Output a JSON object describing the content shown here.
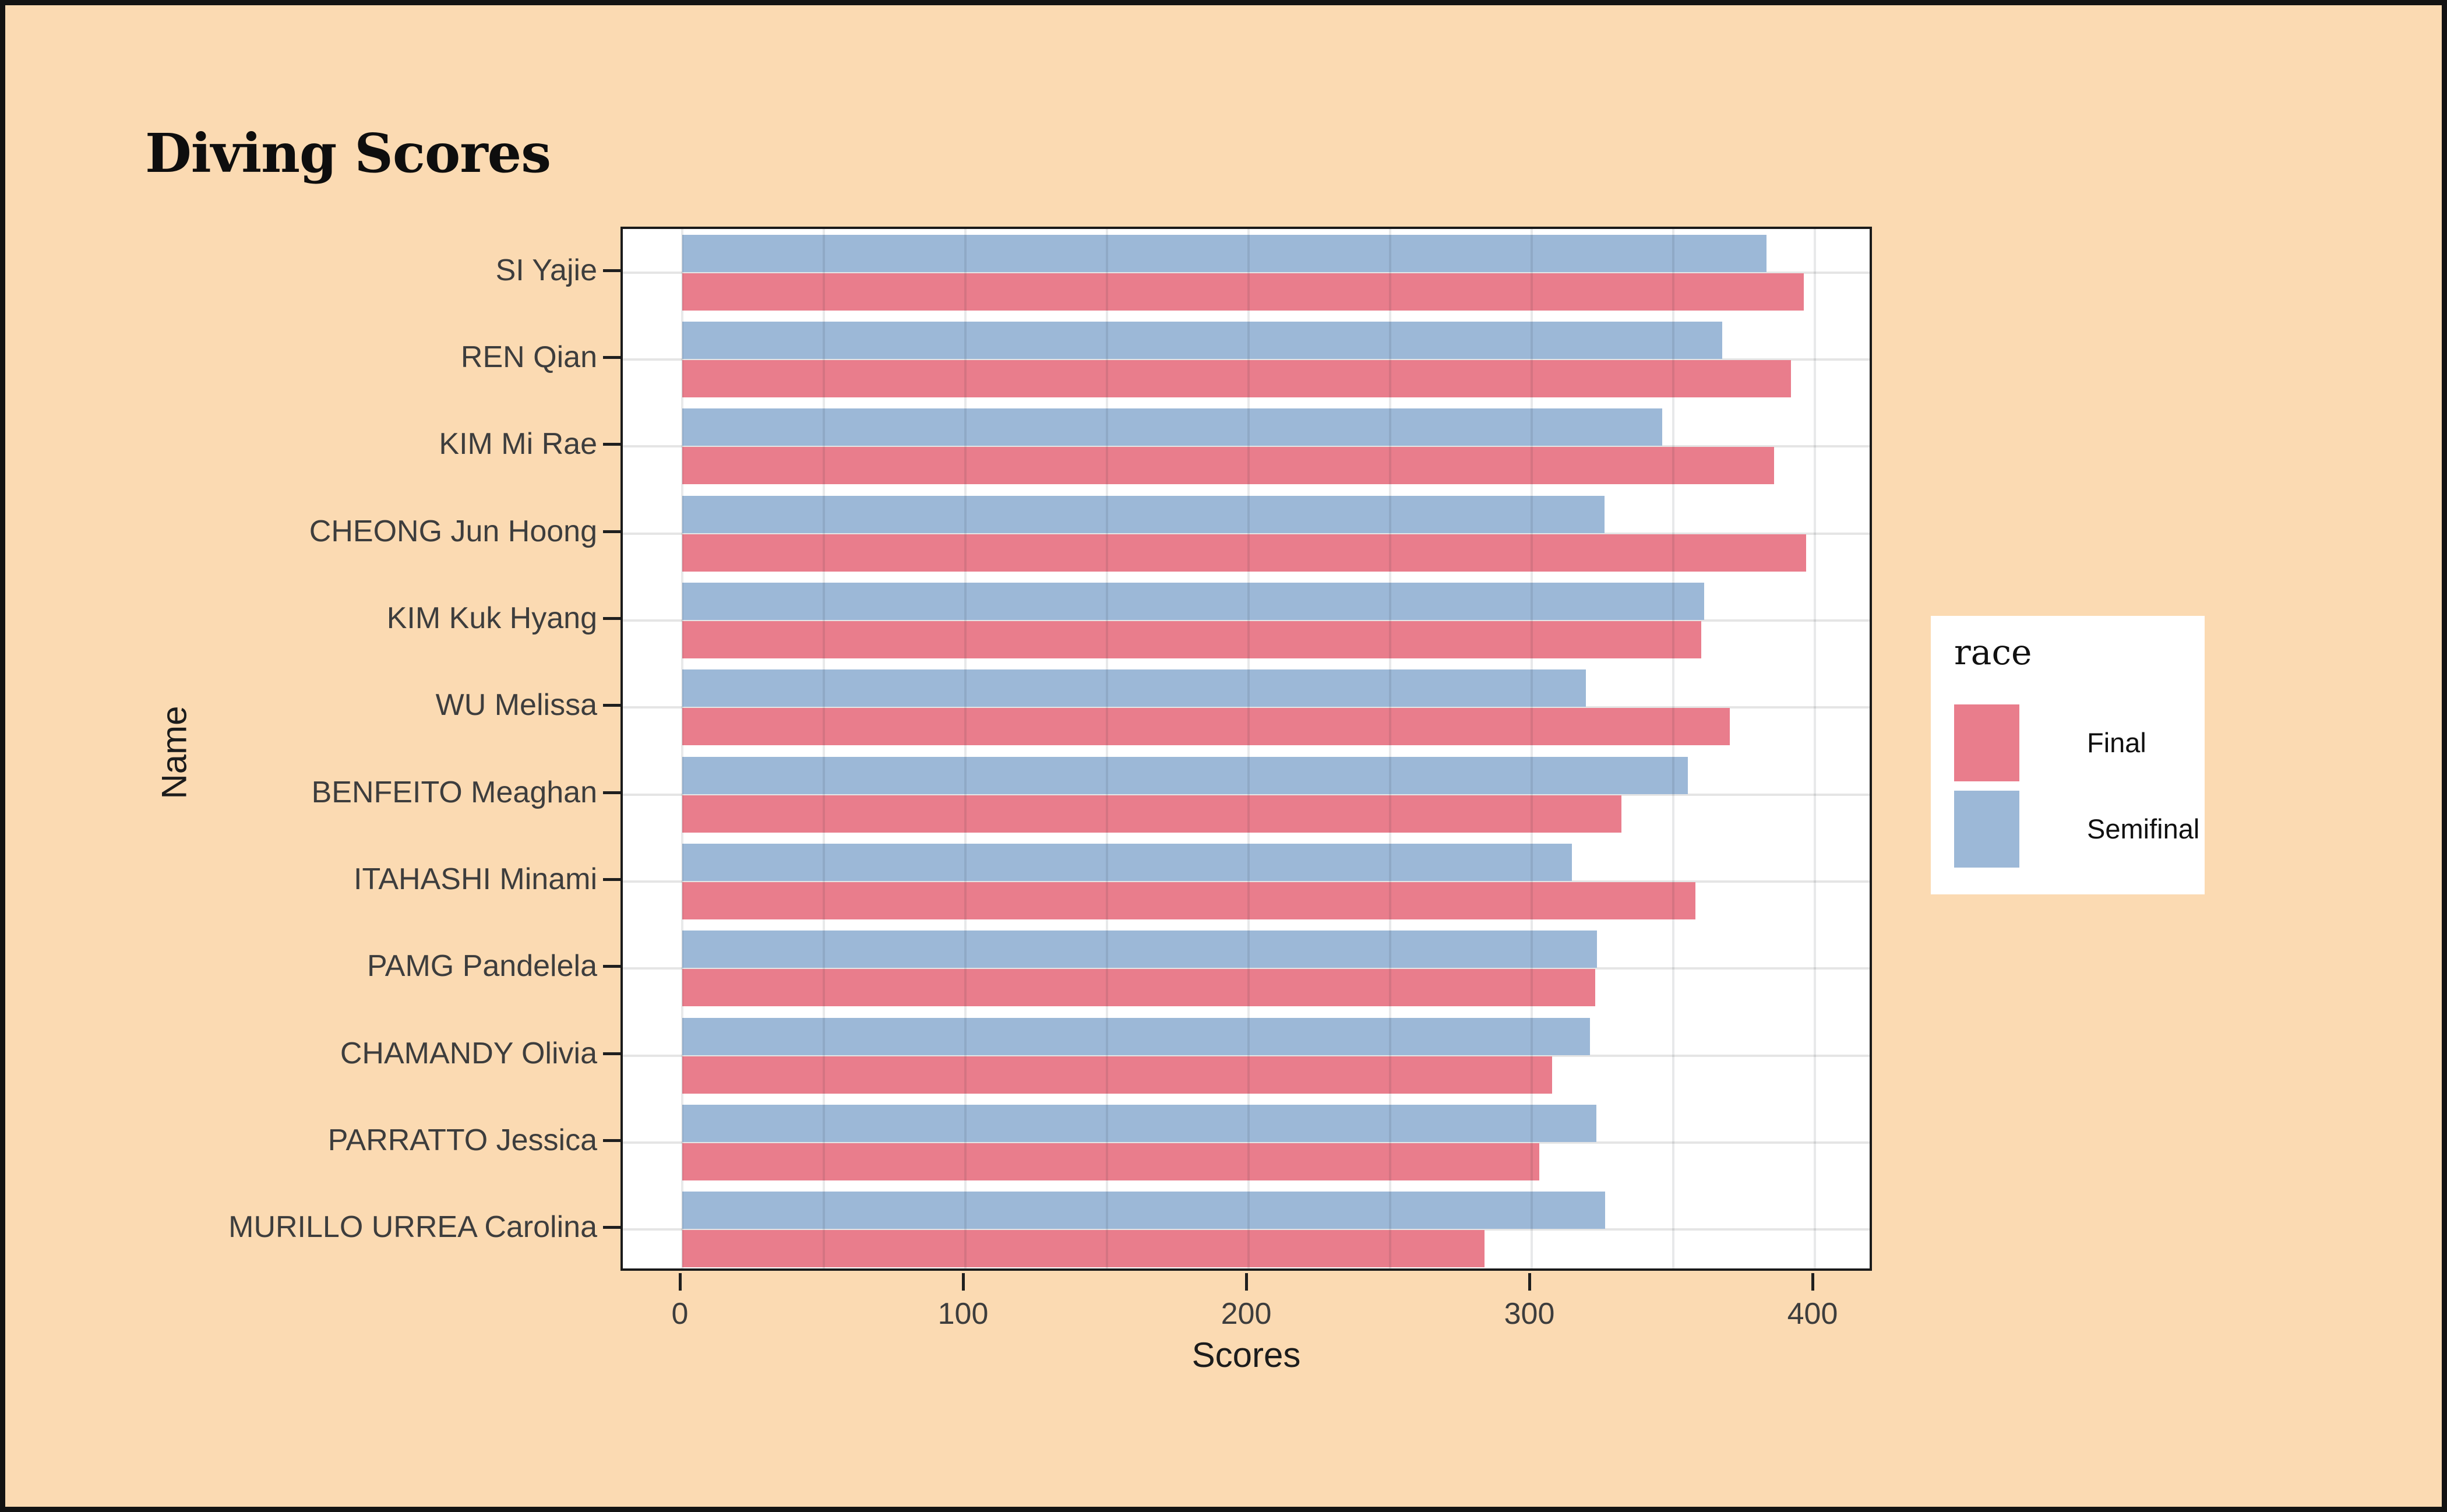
{
  "title": "Diving Scores",
  "axes": {
    "x_label": "Scores",
    "y_label": "Name"
  },
  "legend": {
    "title": "race",
    "items": [
      {
        "label": "Final",
        "color": "#E97D8C"
      },
      {
        "label": "Semifinal",
        "color": "#9CB8D7"
      }
    ]
  },
  "colors": {
    "background": "#FBDAB2",
    "panel": "#FFFFFF",
    "frame_border": "#131313",
    "gridline": "#E5E5E5",
    "axis_text": "#3D3D3D",
    "final_bar": "#E97D8C",
    "semifinal_bar": "#9CB8D7"
  },
  "chart_data": {
    "type": "bar",
    "orientation": "horizontal",
    "grouped": true,
    "title": "Diving Scores",
    "xlabel": "Scores",
    "ylabel": "Name",
    "xlim": [
      0,
      400
    ],
    "x_ticks": [
      0,
      100,
      200,
      300,
      400
    ],
    "x_grid_step": 50,
    "grid": "on",
    "legend_title": "race",
    "legend_position": "right",
    "categories": [
      "SI Yajie",
      "REN Qian",
      "KIM Mi Rae",
      "CHEONG Jun Hoong",
      "KIM Kuk Hyang",
      "WU Melissa",
      "BENFEITO Meaghan",
      "ITAHASHI Minami",
      "PAMG Pandelela",
      "CHAMANDY Olivia",
      "PARRATTO Jessica",
      "MURILLO URREA Carolina"
    ],
    "series": [
      {
        "name": "Semifinal",
        "color": "#9CB8D7",
        "values": [
          382.9,
          367.3,
          346.0,
          325.7,
          360.9,
          319.1,
          355.2,
          314.1,
          323.1,
          320.6,
          322.9,
          326.0
        ]
      },
      {
        "name": "Final",
        "color": "#E97D8C",
        "values": [
          396.0,
          391.6,
          385.5,
          397.0,
          359.9,
          370.0,
          331.6,
          357.8,
          322.5,
          307.1,
          302.7,
          283.4
        ]
      }
    ]
  }
}
